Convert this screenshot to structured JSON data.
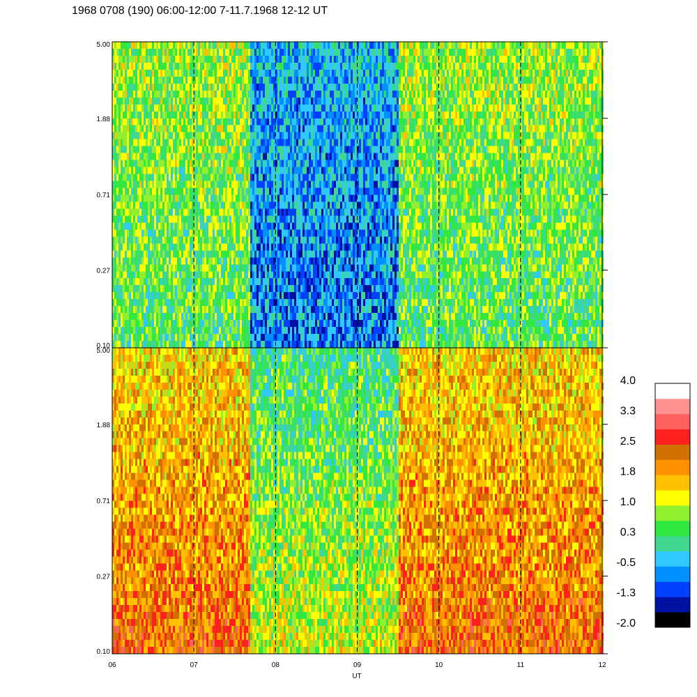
{
  "title": "1968 0708 (190) 06:00-12:00 7-11.7.1968  12-12 UT",
  "chart_data": {
    "type": "heatmap",
    "title": "1968 0708 (190) 06:00-12:00 7-11.7.1968  12-12 UT",
    "xlabel": "UT",
    "x_tick_labels": [
      "06",
      "07",
      "08",
      "09",
      "10",
      "11",
      "12"
    ],
    "x_range": [
      6,
      12
    ],
    "y_scale": "log",
    "y_range": [
      0.1,
      5.0
    ],
    "y_tick_labels": [
      "0.10",
      "0.27",
      "0.71",
      "1.88",
      "5.00"
    ],
    "dashed_vertical_lines_at_ut": [
      7,
      8,
      9,
      10,
      11
    ],
    "panels": [
      {
        "id": "upper",
        "y_tick_labels": [
          "5.00",
          "1.88",
          "0.71",
          "0.27",
          "0.10"
        ],
        "segments": [
          {
            "ut_start": 6.0,
            "ut_end": 7.67,
            "typical_level": 0.6
          },
          {
            "ut_start": 7.67,
            "ut_end": 9.5,
            "typical_level": -0.6
          },
          {
            "ut_start": 9.5,
            "ut_end": 12.0,
            "typical_level": 0.6
          }
        ]
      },
      {
        "id": "lower",
        "y_tick_labels": [
          "5.00",
          "1.88",
          "0.71",
          "0.27",
          "0.10"
        ],
        "segments": [
          {
            "ut_start": 6.0,
            "ut_end": 7.67,
            "typical_level": 1.7
          },
          {
            "ut_start": 7.67,
            "ut_end": 9.5,
            "typical_level": 0.5
          },
          {
            "ut_start": 9.5,
            "ut_end": 12.0,
            "typical_level": 1.7
          }
        ]
      }
    ],
    "colorbar": {
      "range": [
        -2.0,
        4.0
      ],
      "tick_labels": [
        "4.0",
        "3.3",
        "2.5",
        "1.8",
        "1.0",
        "0.3",
        "-0.5",
        "-1.3",
        "-2.0"
      ],
      "colors_bottom_to_top": [
        "#000000",
        "#0010a0",
        "#0040ff",
        "#0090ff",
        "#30c8ff",
        "#40d890",
        "#30e840",
        "#90f030",
        "#ffff00",
        "#ffc000",
        "#ff9000",
        "#d07000",
        "#ff2020",
        "#ff6060",
        "#ff9090",
        "#ffffff"
      ]
    }
  }
}
